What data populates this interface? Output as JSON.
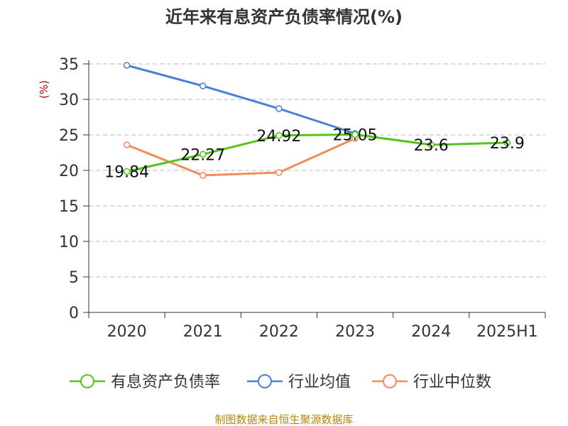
{
  "chart_data": {
    "type": "line",
    "title": "近年来有息资产负债率情况(%)",
    "ylabel": "(%)",
    "xlabel": "",
    "categories": [
      "2020",
      "2021",
      "2022",
      "2023",
      "2024",
      "2025H1"
    ],
    "ylim": [
      0,
      35
    ],
    "yticks": [
      0,
      5,
      10,
      15,
      20,
      25,
      30,
      35
    ],
    "grid": true,
    "legend_position": "bottom",
    "series": [
      {
        "name": "有息资产负债率",
        "color": "#52c41a",
        "values": [
          19.84,
          22.27,
          24.92,
          25.05,
          23.6,
          23.9
        ],
        "show_labels": true
      },
      {
        "name": "行业均值",
        "color": "#4a7fd6",
        "values": [
          34.8,
          31.9,
          28.7,
          25.2,
          null,
          null
        ],
        "show_labels": false
      },
      {
        "name": "行业中位数",
        "color": "#f28c5a",
        "values": [
          23.6,
          19.3,
          19.7,
          24.5,
          null,
          null
        ],
        "show_labels": false
      }
    ],
    "data_labels": [
      "19.84",
      "22.27",
      "24.92",
      "25.05",
      "23.6",
      "23.9"
    ]
  },
  "source": "制图数据来自恒生聚源数据库"
}
